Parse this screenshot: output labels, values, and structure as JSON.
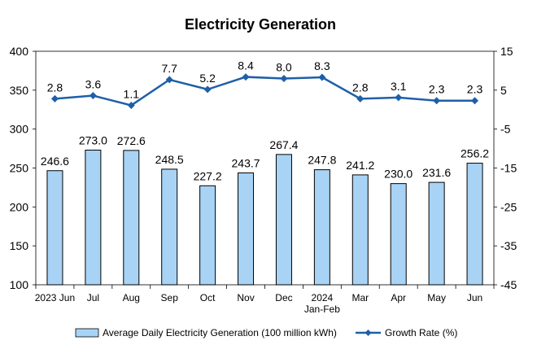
{
  "chart_data": {
    "type": "bar",
    "title": "Electricity Generation",
    "categories": [
      "2023 Jun",
      "Jul",
      "Aug",
      "Sep",
      "Oct",
      "Nov",
      "Dec",
      "2024\nJan-Feb",
      "Mar",
      "Apr",
      "May",
      "Jun"
    ],
    "series": [
      {
        "name": "Average Daily Electricity Generation (100 million kWh)",
        "type": "bar",
        "axis": "left",
        "values": [
          246.6,
          273.0,
          272.6,
          248.5,
          227.2,
          243.7,
          267.4,
          247.8,
          241.2,
          230.0,
          231.6,
          256.2
        ],
        "labels": [
          "246.6",
          "273.0",
          "272.6",
          "248.5",
          "227.2",
          "243.7",
          "267.4",
          "247.8",
          "241.2",
          "230.0",
          "231.6",
          "256.2"
        ],
        "color": "#a8d3f5",
        "edge": "#000000"
      },
      {
        "name": "Growth Rate (%)",
        "type": "line",
        "axis": "right",
        "values": [
          2.8,
          3.6,
          1.1,
          7.7,
          5.2,
          8.4,
          8.0,
          8.3,
          2.8,
          3.1,
          2.3,
          2.3
        ],
        "labels": [
          "2.8",
          "3.6",
          "1.1",
          "7.7",
          "5.2",
          "8.4",
          "8.0",
          "8.3",
          "2.8",
          "3.1",
          "2.3",
          "2.3"
        ],
        "color": "#1f5fa8"
      }
    ],
    "y_left": {
      "min": 100,
      "max": 400,
      "ticks": [
        "100",
        "150",
        "200",
        "250",
        "300",
        "350",
        "400"
      ],
      "tick_values": [
        100,
        150,
        200,
        250,
        300,
        350,
        400
      ]
    },
    "y_right": {
      "min": -45,
      "max": 15,
      "ticks": [
        "-45",
        "-35",
        "-25",
        "-15",
        "-5",
        "5",
        "15"
      ],
      "tick_values": [
        -45,
        -35,
        -25,
        -15,
        -5,
        5,
        15
      ]
    },
    "grid": false,
    "legend_position": "bottom"
  }
}
